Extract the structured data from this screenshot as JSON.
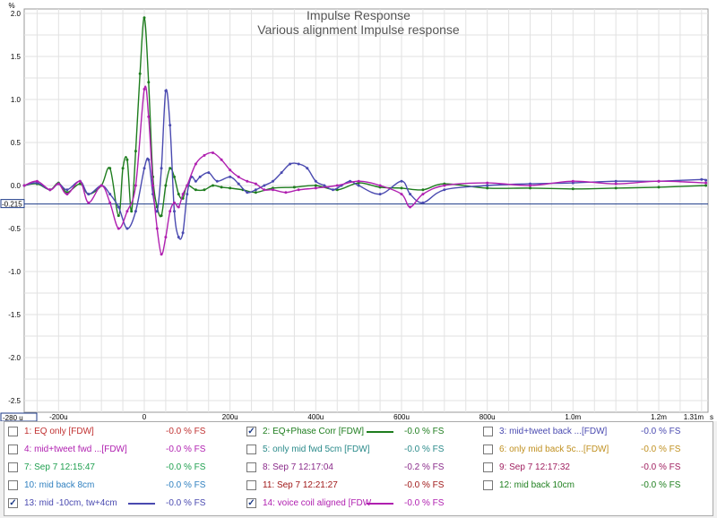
{
  "chart_data": {
    "type": "line",
    "title": "Impulse Response",
    "subtitle": "Various alignment Impulse response",
    "y_unit": "%",
    "x_unit": "s",
    "x_ticks": [
      "-200u",
      "0",
      "200u",
      "400u",
      "600u",
      "800u",
      "1.0m",
      "1.2m",
      "1.31m"
    ],
    "y_ticks": [
      "2.0",
      "1.5",
      "1.0",
      "0.5",
      "0.0",
      "-0.5",
      "-1.0",
      "-1.5",
      "-2.0",
      "-2.5"
    ],
    "x_start_label": "-280 u",
    "cursor_value_label": "-0.215",
    "cursor_value": -0.215,
    "xlim": [
      -0.00028,
      0.00131
    ],
    "ylim": [
      -2.6,
      2.0
    ],
    "grid": true,
    "series": [
      {
        "name": "2: EQ+Phase Corr [FDW]",
        "color": "#1e7d1e",
        "x": [
          -0.00028,
          -0.00025,
          -0.00022,
          -0.0002,
          -0.00018,
          -0.00015,
          -0.00013,
          -0.0001,
          -8e-05,
          -6e-05,
          -5e-05,
          -4e-05,
          -3e-05,
          -2e-05,
          -1e-05,
          0,
          1e-05,
          2e-05,
          3e-05,
          4e-05,
          5e-05,
          6e-05,
          7e-05,
          8e-05,
          9e-05,
          0.0001,
          0.00012,
          0.00014,
          0.00016,
          0.00018,
          0.0002,
          0.00023,
          0.00026,
          0.0003,
          0.00035,
          0.0004,
          0.00045,
          0.0005,
          0.00055,
          0.0006,
          0.00065,
          0.0007,
          0.0008,
          0.0009,
          0.001,
          0.0011,
          0.0012,
          0.00131
        ],
        "y": [
          0.0,
          0.02,
          -0.05,
          0.03,
          -0.08,
          0.02,
          -0.1,
          0.0,
          0.2,
          -0.35,
          0.2,
          0.3,
          -0.3,
          0.4,
          1.3,
          1.95,
          1.2,
          0.1,
          -0.25,
          -0.35,
          0.0,
          0.2,
          0.1,
          -0.1,
          -0.15,
          0.0,
          -0.05,
          -0.05,
          0.0,
          -0.02,
          -0.03,
          -0.05,
          -0.08,
          -0.03,
          -0.02,
          0.0,
          -0.05,
          0.03,
          -0.02,
          -0.03,
          -0.05,
          0.02,
          -0.03,
          -0.03,
          -0.04,
          -0.03,
          -0.02,
          0.0
        ]
      },
      {
        "name": "13: mid -10cm, tw+4cm",
        "color": "#4a4ab0",
        "x": [
          -0.00028,
          -0.00025,
          -0.00022,
          -0.0002,
          -0.00018,
          -0.00015,
          -0.00013,
          -0.0001,
          -8e-05,
          -6e-05,
          -4e-05,
          -2e-05,
          0,
          1e-05,
          2e-05,
          3e-05,
          4e-05,
          5e-05,
          6e-05,
          7e-05,
          8e-05,
          9e-05,
          0.0001,
          0.00011,
          0.00012,
          0.00013,
          0.00015,
          0.00017,
          0.0002,
          0.00022,
          0.00024,
          0.00026,
          0.00028,
          0.0003,
          0.00032,
          0.00034,
          0.00036,
          0.00038,
          0.0004,
          0.00042,
          0.00044,
          0.00046,
          0.00048,
          0.0005,
          0.00055,
          0.0006,
          0.00062,
          0.00065,
          0.0007,
          0.0008,
          0.0009,
          0.001,
          0.0011,
          0.0012,
          0.0013,
          0.00131
        ],
        "y": [
          0.0,
          0.03,
          -0.05,
          0.02,
          -0.05,
          0.05,
          -0.1,
          0.0,
          -0.1,
          -0.25,
          -0.5,
          -0.3,
          0.2,
          0.3,
          -0.1,
          -0.3,
          0.2,
          1.1,
          0.7,
          -0.3,
          -0.6,
          -0.55,
          -0.1,
          0.1,
          0.05,
          0.1,
          0.15,
          0.05,
          0.1,
          0.02,
          -0.08,
          -0.05,
          0.0,
          0.05,
          0.15,
          0.25,
          0.25,
          0.2,
          0.05,
          0.0,
          -0.05,
          0.0,
          0.05,
          0.0,
          -0.1,
          0.05,
          -0.1,
          -0.2,
          -0.05,
          0.0,
          0.02,
          0.03,
          0.05,
          0.05,
          0.07,
          0.06
        ]
      },
      {
        "name": "14: voice coil aligned [FDW",
        "color": "#b020b0",
        "x": [
          -0.00028,
          -0.00025,
          -0.00022,
          -0.0002,
          -0.00018,
          -0.00015,
          -0.00013,
          -0.0001,
          -8e-05,
          -6e-05,
          -4e-05,
          -2e-05,
          0,
          1e-05,
          2e-05,
          3e-05,
          4e-05,
          5e-05,
          6e-05,
          7e-05,
          8e-05,
          9e-05,
          0.0001,
          0.00012,
          0.00014,
          0.00016,
          0.00018,
          0.0002,
          0.00022,
          0.00024,
          0.00026,
          0.00028,
          0.0003,
          0.00033,
          0.00036,
          0.0004,
          0.00045,
          0.0005,
          0.00055,
          0.0006,
          0.00062,
          0.00065,
          0.0007,
          0.0008,
          0.0009,
          0.001,
          0.0011,
          0.0012,
          0.00131
        ],
        "y": [
          0.0,
          0.05,
          -0.05,
          0.02,
          -0.1,
          0.05,
          -0.2,
          0.0,
          -0.2,
          -0.5,
          -0.3,
          0.0,
          1.12,
          0.8,
          0.0,
          -0.5,
          -0.8,
          -0.6,
          -0.3,
          -0.2,
          -0.25,
          -0.1,
          0.0,
          0.25,
          0.35,
          0.38,
          0.3,
          0.18,
          0.1,
          0.05,
          0.02,
          -0.05,
          -0.05,
          -0.08,
          -0.05,
          -0.03,
          0.0,
          0.05,
          0.0,
          -0.1,
          -0.25,
          -0.1,
          0.0,
          0.03,
          0.0,
          0.05,
          0.02,
          0.05,
          0.03
        ]
      }
    ]
  },
  "legend": [
    [
      {
        "label": "1: EQ only [FDW]",
        "checked": false,
        "value": "-0.0 % FS",
        "color": "#c03030",
        "swatch": false
      },
      {
        "label": "2: EQ+Phase Corr [FDW]",
        "checked": true,
        "value": "-0.0 % FS",
        "color": "#1e7d1e",
        "swatch": true
      },
      {
        "label": "3: mid+tweet back ...[FDW]",
        "checked": false,
        "value": "-0.0 % FS",
        "color": "#4a4ab0",
        "swatch": false
      }
    ],
    [
      {
        "label": "4: mid+tweet fwd ...[FDW]",
        "checked": false,
        "value": "-0.0 % FS",
        "color": "#b020b0",
        "swatch": false
      },
      {
        "label": "5: only mid fwd 5cm [FDW]",
        "checked": false,
        "value": "-0.0 % FS",
        "color": "#2a8a8a",
        "swatch": false
      },
      {
        "label": "6: only mid back 5c...[FDW]",
        "checked": false,
        "value": "-0.0 % FS",
        "color": "#c09020",
        "swatch": false
      }
    ],
    [
      {
        "label": "7: Sep 7 12:15:47",
        "checked": false,
        "value": "-0.0 % FS",
        "color": "#20a050",
        "swatch": false
      },
      {
        "label": "8: Sep 7 12:17:04",
        "checked": false,
        "value": "-0.2 % FS",
        "color": "#8a2a8a",
        "swatch": false
      },
      {
        "label": "9: Sep 7 12:17:32",
        "checked": false,
        "value": "-0.0 % FS",
        "color": "#a02060",
        "swatch": false
      }
    ],
    [
      {
        "label": "10: mid back 8cm",
        "checked": false,
        "value": "-0.0 % FS",
        "color": "#3080c0",
        "swatch": false
      },
      {
        "label": "11: Sep 7 12:21:27",
        "checked": false,
        "value": "-0.0 % FS",
        "color": "#a01818",
        "swatch": false
      },
      {
        "label": "12: mid back 10cm",
        "checked": false,
        "value": "-0.0 % FS",
        "color": "#208020",
        "swatch": false
      }
    ],
    [
      {
        "label": "13: mid -10cm, tw+4cm",
        "checked": true,
        "value": "-0.0 % FS",
        "color": "#4a4ab0",
        "swatch": true
      },
      {
        "label": "14: voice coil aligned [FDW",
        "checked": true,
        "value": "-0.0 % FS",
        "color": "#b020b0",
        "swatch": true
      }
    ]
  ]
}
